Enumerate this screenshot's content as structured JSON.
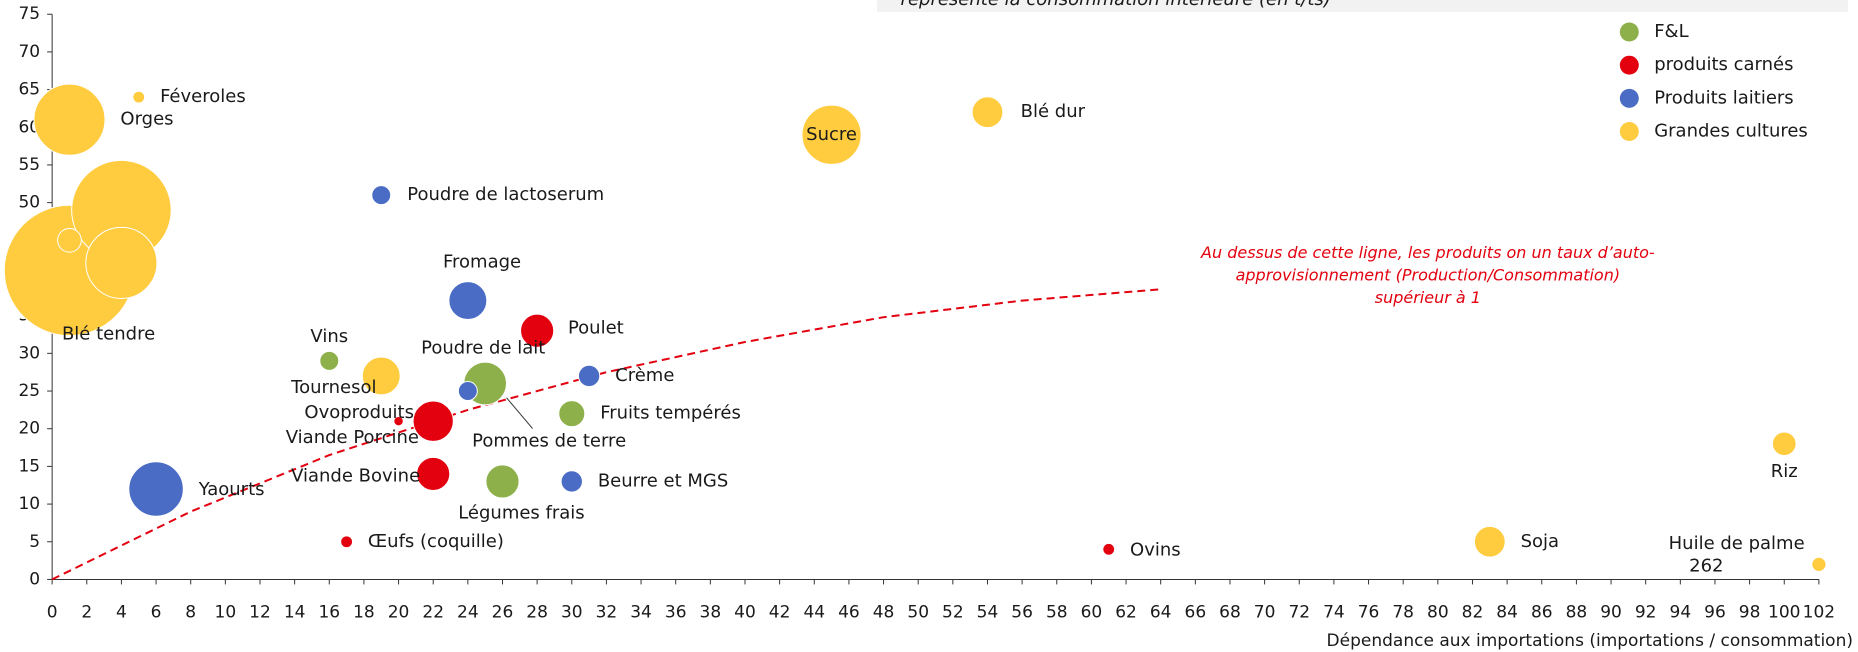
{
  "chart_data": {
    "type": "scatter",
    "header_note": "représente la consommation intérieure (en t/ts)",
    "x_label": "Dépendance aux importations (importations / consommation)",
    "xlim": [
      0,
      102
    ],
    "xticks": [
      0,
      2,
      4,
      6,
      8,
      10,
      12,
      14,
      16,
      18,
      20,
      22,
      24,
      26,
      28,
      30,
      32,
      34,
      36,
      38,
      40,
      42,
      44,
      46,
      48,
      50,
      52,
      54,
      56,
      58,
      60,
      62,
      64,
      66,
      68,
      70,
      72,
      74,
      76,
      78,
      80,
      82,
      84,
      86,
      88,
      90,
      92,
      94,
      96,
      98,
      100,
      102
    ],
    "ylim": [
      0,
      75
    ],
    "yticks": [
      0,
      5,
      10,
      15,
      20,
      25,
      30,
      35,
      40,
      45,
      50,
      55,
      60,
      65,
      70,
      75
    ],
    "legend_position": "upper right",
    "series": [
      {
        "name": "F&L",
        "color": "#8db04a",
        "labels": [
          "Vins",
          "Pommes de terre",
          "Fruits tempérés",
          "Légumes frais"
        ],
        "x": [
          16,
          25,
          30,
          26
        ],
        "y": [
          29,
          26,
          22,
          13
        ],
        "sizes": [
          64,
          324,
          121,
          196
        ]
      },
      {
        "name": "produits carnés",
        "color": "#e3000f",
        "labels": [
          "Poulet",
          "Viande Porcine",
          "Ovoproduits",
          "Viande Bovine",
          "Œufs (coquille)",
          "Ovins"
        ],
        "x": [
          28,
          22,
          20,
          22,
          17,
          61
        ],
        "y": [
          33,
          21,
          21,
          14,
          5,
          4
        ],
        "sizes": [
          196,
          289,
          16,
          196,
          25,
          25
        ]
      },
      {
        "name": "Produits laitiers",
        "color": "#4a6cc4",
        "labels": [
          "Poudre de lactoserum",
          "Fromage",
          "Poudre de lait",
          "Crème",
          "Yaourts",
          "Beurre et MGS"
        ],
        "x": [
          19,
          24,
          24,
          31,
          6,
          30
        ],
        "y": [
          51,
          37,
          25,
          27,
          12,
          13
        ],
        "sizes": [
          64,
          256,
          64,
          81,
          529,
          81
        ]
      },
      {
        "name": "Grandes cultures",
        "color": "#ffcc40",
        "labels": [
          "Blé tendre",
          null,
          null,
          "Orges",
          null,
          "Féveroles",
          "Sucre",
          "Blé dur",
          "Tournesol",
          "Soja",
          "Riz",
          "Huile de palme"
        ],
        "x": [
          1,
          4,
          4,
          1,
          1,
          5,
          45,
          54,
          19,
          83,
          100,
          102
        ],
        "y": [
          41,
          49,
          42,
          61,
          45,
          64,
          59,
          62,
          27,
          5,
          18,
          2
        ],
        "sizes": [
          3025,
          1764,
          900,
          900,
          100,
          25,
          625,
          169,
          256,
          169,
          100,
          36
        ]
      }
    ],
    "annotations": [
      "262"
    ],
    "threshold_curve": {
      "color": "#e3000f",
      "text": [
        "Au dessus de cette ligne, les produits on un taux d’auto-",
        "approvisionnement (Production/Consommation)",
        "supérieur à 1"
      ],
      "x": [
        0,
        8,
        16,
        24,
        32,
        40,
        48,
        56,
        64
      ],
      "y": [
        0,
        9,
        16.5,
        22.5,
        27.5,
        31.5,
        34.8,
        37,
        38.5
      ]
    }
  }
}
